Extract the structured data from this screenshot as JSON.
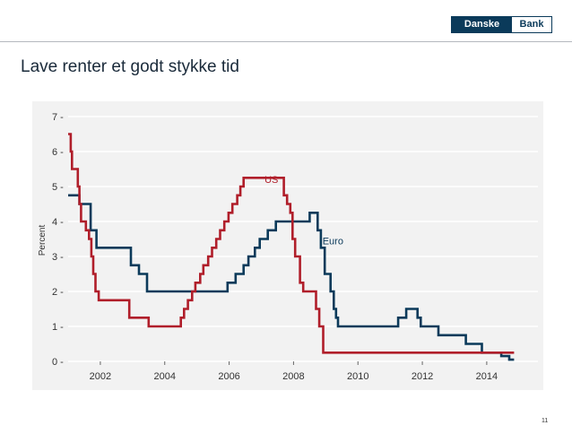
{
  "header": {
    "logo_left": "Danske",
    "logo_right": "Bank",
    "title": "Lave renter et godt stykke tid"
  },
  "footer": {
    "page_number": "11"
  },
  "colors": {
    "us": "#b01e2a",
    "euro": "#0b3a5a",
    "background": "#f2f2f2",
    "grid": "#ffffff"
  },
  "chart_data": {
    "type": "line",
    "title": "",
    "xlabel": "",
    "ylabel": "Percent",
    "xlim": [
      2001,
      2015.2
    ],
    "ylim": [
      0,
      7
    ],
    "grid": true,
    "x_ticks": [
      2002,
      2004,
      2006,
      2008,
      2010,
      2012,
      2014
    ],
    "x_tick_labels": [
      "2002",
      "2004",
      "2006",
      "2008",
      "2010",
      "2012",
      "2014"
    ],
    "y_ticks": [
      0,
      1,
      2,
      3,
      4,
      5,
      6,
      7
    ],
    "y_tick_labels": [
      "0 -",
      "1 -",
      "2 -",
      "3 -",
      "4 -",
      "5 -",
      "6 -",
      "7 -"
    ],
    "series": [
      {
        "name": "US",
        "label_at": [
          2007.1,
          5.1
        ],
        "points": [
          [
            2001.0,
            6.5
          ],
          [
            2001.08,
            6.5
          ],
          [
            2001.08,
            6.0
          ],
          [
            2001.12,
            6.0
          ],
          [
            2001.12,
            5.5
          ],
          [
            2001.3,
            5.5
          ],
          [
            2001.3,
            5.0
          ],
          [
            2001.35,
            5.0
          ],
          [
            2001.35,
            4.5
          ],
          [
            2001.4,
            4.5
          ],
          [
            2001.4,
            4.0
          ],
          [
            2001.55,
            4.0
          ],
          [
            2001.55,
            3.75
          ],
          [
            2001.65,
            3.75
          ],
          [
            2001.65,
            3.5
          ],
          [
            2001.72,
            3.5
          ],
          [
            2001.72,
            3.0
          ],
          [
            2001.78,
            3.0
          ],
          [
            2001.78,
            2.5
          ],
          [
            2001.85,
            2.5
          ],
          [
            2001.85,
            2.0
          ],
          [
            2001.95,
            2.0
          ],
          [
            2001.95,
            1.75
          ],
          [
            2002.9,
            1.75
          ],
          [
            2002.9,
            1.25
          ],
          [
            2003.5,
            1.25
          ],
          [
            2003.5,
            1.0
          ],
          [
            2004.5,
            1.0
          ],
          [
            2004.5,
            1.25
          ],
          [
            2004.6,
            1.25
          ],
          [
            2004.6,
            1.5
          ],
          [
            2004.72,
            1.5
          ],
          [
            2004.72,
            1.75
          ],
          [
            2004.85,
            1.75
          ],
          [
            2004.85,
            2.0
          ],
          [
            2004.95,
            2.0
          ],
          [
            2004.95,
            2.25
          ],
          [
            2005.1,
            2.25
          ],
          [
            2005.1,
            2.5
          ],
          [
            2005.2,
            2.5
          ],
          [
            2005.2,
            2.75
          ],
          [
            2005.35,
            2.75
          ],
          [
            2005.35,
            3.0
          ],
          [
            2005.47,
            3.0
          ],
          [
            2005.47,
            3.25
          ],
          [
            2005.6,
            3.25
          ],
          [
            2005.6,
            3.5
          ],
          [
            2005.72,
            3.5
          ],
          [
            2005.72,
            3.75
          ],
          [
            2005.85,
            3.75
          ],
          [
            2005.85,
            4.0
          ],
          [
            2005.98,
            4.0
          ],
          [
            2005.98,
            4.25
          ],
          [
            2006.1,
            4.25
          ],
          [
            2006.1,
            4.5
          ],
          [
            2006.25,
            4.5
          ],
          [
            2006.25,
            4.75
          ],
          [
            2006.35,
            4.75
          ],
          [
            2006.35,
            5.0
          ],
          [
            2006.45,
            5.0
          ],
          [
            2006.45,
            5.25
          ],
          [
            2007.7,
            5.25
          ],
          [
            2007.7,
            4.75
          ],
          [
            2007.8,
            4.75
          ],
          [
            2007.8,
            4.5
          ],
          [
            2007.9,
            4.5
          ],
          [
            2007.9,
            4.25
          ],
          [
            2007.97,
            4.25
          ],
          [
            2007.97,
            3.5
          ],
          [
            2008.05,
            3.5
          ],
          [
            2008.05,
            3.0
          ],
          [
            2008.2,
            3.0
          ],
          [
            2008.2,
            2.25
          ],
          [
            2008.3,
            2.25
          ],
          [
            2008.3,
            2.0
          ],
          [
            2008.7,
            2.0
          ],
          [
            2008.7,
            1.5
          ],
          [
            2008.8,
            1.5
          ],
          [
            2008.8,
            1.0
          ],
          [
            2008.92,
            1.0
          ],
          [
            2008.92,
            0.25
          ],
          [
            2014.85,
            0.25
          ]
        ]
      },
      {
        "name": "Euro",
        "label_at": [
          2008.9,
          3.35
        ],
        "points": [
          [
            2001.0,
            4.75
          ],
          [
            2001.35,
            4.75
          ],
          [
            2001.35,
            4.5
          ],
          [
            2001.7,
            4.5
          ],
          [
            2001.7,
            3.75
          ],
          [
            2001.88,
            3.75
          ],
          [
            2001.88,
            3.25
          ],
          [
            2002.95,
            3.25
          ],
          [
            2002.95,
            2.75
          ],
          [
            2003.2,
            2.75
          ],
          [
            2003.2,
            2.5
          ],
          [
            2003.45,
            2.5
          ],
          [
            2003.45,
            2.0
          ],
          [
            2005.95,
            2.0
          ],
          [
            2005.95,
            2.25
          ],
          [
            2006.2,
            2.25
          ],
          [
            2006.2,
            2.5
          ],
          [
            2006.45,
            2.5
          ],
          [
            2006.45,
            2.75
          ],
          [
            2006.6,
            2.75
          ],
          [
            2006.6,
            3.0
          ],
          [
            2006.8,
            3.0
          ],
          [
            2006.8,
            3.25
          ],
          [
            2006.95,
            3.25
          ],
          [
            2006.95,
            3.5
          ],
          [
            2007.2,
            3.5
          ],
          [
            2007.2,
            3.75
          ],
          [
            2007.45,
            3.75
          ],
          [
            2007.45,
            4.0
          ],
          [
            2008.5,
            4.0
          ],
          [
            2008.5,
            4.25
          ],
          [
            2008.75,
            4.25
          ],
          [
            2008.75,
            3.75
          ],
          [
            2008.85,
            3.75
          ],
          [
            2008.85,
            3.25
          ],
          [
            2008.97,
            3.25
          ],
          [
            2008.97,
            2.5
          ],
          [
            2009.15,
            2.5
          ],
          [
            2009.15,
            2.0
          ],
          [
            2009.25,
            2.0
          ],
          [
            2009.25,
            1.5
          ],
          [
            2009.32,
            1.5
          ],
          [
            2009.32,
            1.25
          ],
          [
            2009.38,
            1.25
          ],
          [
            2009.38,
            1.0
          ],
          [
            2011.25,
            1.0
          ],
          [
            2011.25,
            1.25
          ],
          [
            2011.5,
            1.25
          ],
          [
            2011.5,
            1.5
          ],
          [
            2011.85,
            1.5
          ],
          [
            2011.85,
            1.25
          ],
          [
            2011.95,
            1.25
          ],
          [
            2011.95,
            1.0
          ],
          [
            2012.5,
            1.0
          ],
          [
            2012.5,
            0.75
          ],
          [
            2013.35,
            0.75
          ],
          [
            2013.35,
            0.5
          ],
          [
            2013.85,
            0.5
          ],
          [
            2013.85,
            0.25
          ],
          [
            2014.45,
            0.25
          ],
          [
            2014.45,
            0.15
          ],
          [
            2014.7,
            0.15
          ],
          [
            2014.7,
            0.05
          ],
          [
            2014.85,
            0.05
          ]
        ]
      }
    ]
  }
}
